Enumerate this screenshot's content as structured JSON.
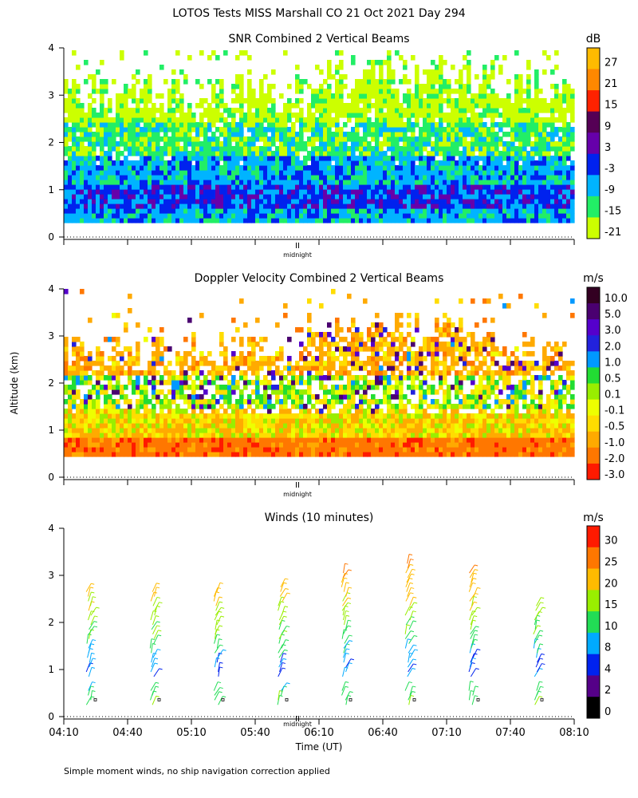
{
  "figure": {
    "title": "LOTOS Tests MISS Marshall CO  21 Oct 2021 Day 294",
    "ylabel": "Altitude (km)",
    "xlabel": "Time (UT)",
    "footnote": "Simple moment winds, no ship navigation correction applied",
    "midnight_label": "midnight",
    "midnight_marker": "II"
  },
  "chart_data": [
    {
      "type": "heatmap",
      "title": "SNR Combined 2 Vertical Beams",
      "xlabel": "Time (UT)",
      "ylabel": "Altitude (km)",
      "x_range_minutes": [
        250,
        490
      ],
      "ylim": [
        0,
        4
      ],
      "yticks": [
        "0",
        "1",
        "2",
        "3",
        "4"
      ],
      "colorbar": {
        "unit": "dB",
        "labels": [
          "27",
          "21",
          "15",
          "9",
          "3",
          "-3",
          "-9",
          "-15",
          "-21"
        ],
        "colors": [
          "#ffbb00",
          "#ff8800",
          "#ff2200",
          "#550055",
          "#6600aa",
          "#0022ee",
          "#00b4ff",
          "#22ee66",
          "#ccff00"
        ]
      },
      "profile_by_altitude": [
        {
          "altitude_km": 0.4,
          "typical_db": -9
        },
        {
          "altitude_km": 0.8,
          "typical_db": -3
        },
        {
          "altitude_km": 1.3,
          "typical_db": -9
        },
        {
          "altitude_km": 2.0,
          "typical_db": -15
        },
        {
          "altitude_km": 2.8,
          "typical_db": -21
        }
      ]
    },
    {
      "type": "heatmap",
      "title": "Doppler Velocity Combined 2 Vertical Beams",
      "xlabel": "Time (UT)",
      "ylabel": "Altitude (km)",
      "x_range_minutes": [
        250,
        490
      ],
      "ylim": [
        0,
        4
      ],
      "yticks": [
        "0",
        "1",
        "2",
        "3",
        "4"
      ],
      "colorbar": {
        "unit": "m/s",
        "labels": [
          "10.0",
          "5.0",
          "3.0",
          "2.0",
          "1.0",
          "0.5",
          "0.1",
          "-0.1",
          "-0.5",
          "-1.0",
          "-2.0",
          "-3.0"
        ],
        "colors": [
          "#330022",
          "#4a0070",
          "#5500cc",
          "#2222dd",
          "#0099ff",
          "#22dd33",
          "#99ee00",
          "#eeff00",
          "#ffdd00",
          "#ffaa00",
          "#ff7700",
          "#ff1a00"
        ]
      },
      "profile_by_altitude": [
        {
          "altitude_km": 0.5,
          "typical_ms": -2.0
        },
        {
          "altitude_km": 1.0,
          "typical_ms": -0.5
        },
        {
          "altitude_km": 1.8,
          "typical_ms": 0.1
        },
        {
          "altitude_km": 2.5,
          "typical_ms": -1.0
        }
      ]
    },
    {
      "type": "scatter",
      "title": "Winds (10 minutes)",
      "xlabel": "Time (UT)",
      "ylabel": "Altitude (km)",
      "xticks": [
        "04:10",
        "04:40",
        "05:10",
        "05:40",
        "06:10",
        "06:40",
        "07:10",
        "07:40",
        "08:10"
      ],
      "x_range_minutes": [
        250,
        490
      ],
      "ylim": [
        0,
        4
      ],
      "yticks": [
        "0",
        "1",
        "2",
        "3",
        "4"
      ],
      "colorbar": {
        "unit": "m/s",
        "labels": [
          "30",
          "25",
          "20",
          "15",
          "10",
          "8",
          "4",
          "2",
          "0"
        ],
        "colors": [
          "#ff1a00",
          "#ff7700",
          "#ffbb00",
          "#99ee00",
          "#22dd55",
          "#00aaff",
          "#0022ee",
          "#550088",
          "#000000"
        ]
      },
      "wind_profiles": [
        {
          "time_minutes": 265,
          "top_km": 2.7
        },
        {
          "time_minutes": 295,
          "top_km": 2.7
        },
        {
          "time_minutes": 325,
          "top_km": 2.7
        },
        {
          "time_minutes": 355,
          "top_km": 2.8
        },
        {
          "time_minutes": 385,
          "top_km": 3.1
        },
        {
          "time_minutes": 415,
          "top_km": 3.3
        },
        {
          "time_minutes": 445,
          "top_km": 3.1
        },
        {
          "time_minutes": 475,
          "top_km": 2.4
        }
      ],
      "speed_by_altitude": [
        {
          "altitude_km": 0.3,
          "speed_ms": 12
        },
        {
          "altitude_km": 0.9,
          "speed_ms": 5
        },
        {
          "altitude_km": 1.5,
          "speed_ms": 10
        },
        {
          "altitude_km": 2.2,
          "speed_ms": 16
        },
        {
          "altitude_km": 2.8,
          "speed_ms": 21
        },
        {
          "altitude_km": 3.2,
          "speed_ms": 25
        }
      ]
    }
  ]
}
